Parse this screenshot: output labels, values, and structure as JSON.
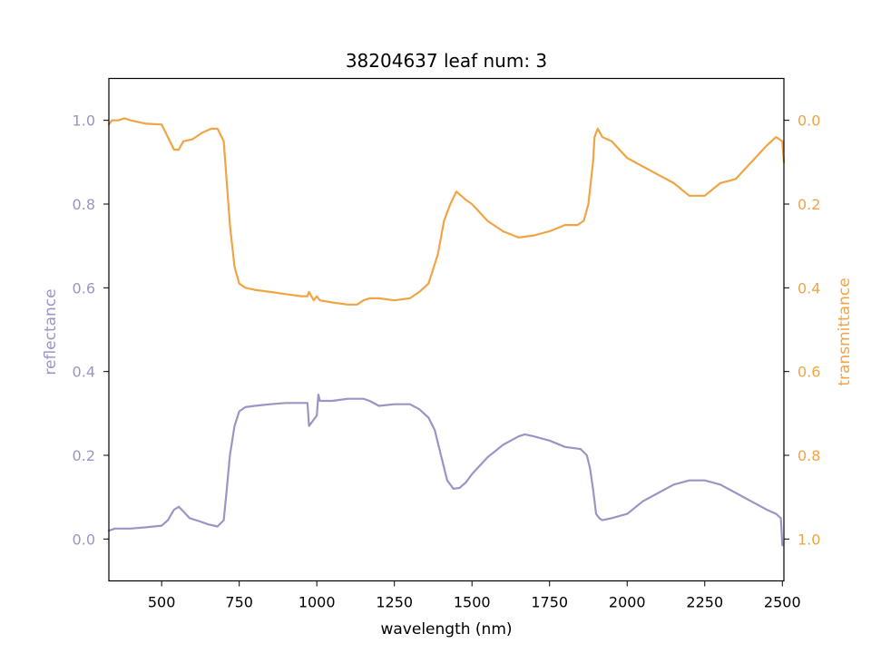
{
  "chart_data": {
    "type": "line",
    "title": "38204637 leaf num: 3",
    "xlabel": "wavelength (nm)",
    "ylabel_left": "reflectance",
    "ylabel_right": "transmittance",
    "xlim": [
      330,
      2505
    ],
    "ylim_left": [
      -0.1,
      1.1
    ],
    "ylim_right": [
      1.1,
      -0.1
    ],
    "right_axis_inverted": true,
    "x_ticks": [
      500,
      750,
      1000,
      1250,
      1500,
      1750,
      2000,
      2250,
      2500
    ],
    "y_ticks_left": [
      0.0,
      0.2,
      0.4,
      0.6,
      0.8,
      1.0
    ],
    "y_ticks_right": [
      0.0,
      0.2,
      0.4,
      0.6,
      0.8,
      1.0
    ],
    "left_axis_color": "#9b95c5",
    "right_axis_color": "#f0a445",
    "grid": false,
    "series": [
      {
        "name": "reflectance",
        "axis": "left",
        "color": "#9b95c5",
        "x": [
          330,
          350,
          400,
          450,
          500,
          520,
          540,
          555,
          570,
          590,
          620,
          650,
          680,
          700,
          710,
          720,
          735,
          750,
          770,
          800,
          850,
          900,
          950,
          970,
          975,
          1000,
          1005,
          1010,
          1050,
          1100,
          1150,
          1170,
          1200,
          1250,
          1300,
          1330,
          1360,
          1380,
          1400,
          1420,
          1440,
          1460,
          1480,
          1500,
          1550,
          1600,
          1650,
          1670,
          1700,
          1750,
          1800,
          1850,
          1870,
          1880,
          1890,
          1900,
          1910,
          1920,
          1950,
          2000,
          2050,
          2100,
          2150,
          2200,
          2250,
          2300,
          2350,
          2400,
          2450,
          2480,
          2495,
          2500
        ],
        "y": [
          0.02,
          0.025,
          0.025,
          0.028,
          0.032,
          0.045,
          0.07,
          0.077,
          0.066,
          0.05,
          0.043,
          0.035,
          0.03,
          0.045,
          0.12,
          0.2,
          0.27,
          0.305,
          0.315,
          0.318,
          0.322,
          0.325,
          0.325,
          0.325,
          0.27,
          0.295,
          0.345,
          0.33,
          0.33,
          0.335,
          0.335,
          0.33,
          0.318,
          0.322,
          0.322,
          0.31,
          0.29,
          0.26,
          0.2,
          0.14,
          0.12,
          0.122,
          0.135,
          0.155,
          0.195,
          0.225,
          0.245,
          0.25,
          0.245,
          0.235,
          0.22,
          0.215,
          0.2,
          0.17,
          0.12,
          0.06,
          0.05,
          0.045,
          0.05,
          0.06,
          0.09,
          0.11,
          0.13,
          0.14,
          0.14,
          0.13,
          0.11,
          0.09,
          0.07,
          0.06,
          0.05,
          -0.015
        ]
      },
      {
        "name": "transmittance",
        "axis": "right",
        "color": "#f0a445",
        "x": [
          330,
          340,
          360,
          380,
          400,
          450,
          500,
          520,
          540,
          555,
          570,
          600,
          630,
          660,
          680,
          700,
          710,
          720,
          735,
          750,
          770,
          800,
          850,
          900,
          950,
          970,
          975,
          990,
          1000,
          1010,
          1050,
          1100,
          1130,
          1150,
          1170,
          1200,
          1250,
          1300,
          1330,
          1360,
          1390,
          1410,
          1430,
          1450,
          1480,
          1500,
          1550,
          1600,
          1650,
          1700,
          1750,
          1800,
          1840,
          1860,
          1875,
          1890,
          1895,
          1905,
          1920,
          1950,
          1975,
          2000,
          2050,
          2100,
          2150,
          2200,
          2250,
          2300,
          2350,
          2400,
          2450,
          2480,
          2500,
          2505
        ],
        "y": [
          0.01,
          0.0,
          0.0,
          -0.005,
          0.0,
          0.008,
          0.01,
          0.04,
          0.07,
          0.07,
          0.05,
          0.045,
          0.03,
          0.02,
          0.02,
          0.05,
          0.15,
          0.25,
          0.35,
          0.39,
          0.4,
          0.405,
          0.41,
          0.415,
          0.42,
          0.42,
          0.41,
          0.43,
          0.42,
          0.43,
          0.435,
          0.44,
          0.44,
          0.43,
          0.425,
          0.425,
          0.43,
          0.425,
          0.41,
          0.39,
          0.32,
          0.24,
          0.2,
          0.17,
          0.19,
          0.2,
          0.24,
          0.265,
          0.28,
          0.275,
          0.265,
          0.25,
          0.25,
          0.24,
          0.2,
          0.1,
          0.04,
          0.02,
          0.04,
          0.05,
          0.07,
          0.09,
          0.11,
          0.13,
          0.15,
          0.18,
          0.18,
          0.15,
          0.14,
          0.1,
          0.06,
          0.04,
          0.05,
          0.1
        ]
      }
    ]
  }
}
